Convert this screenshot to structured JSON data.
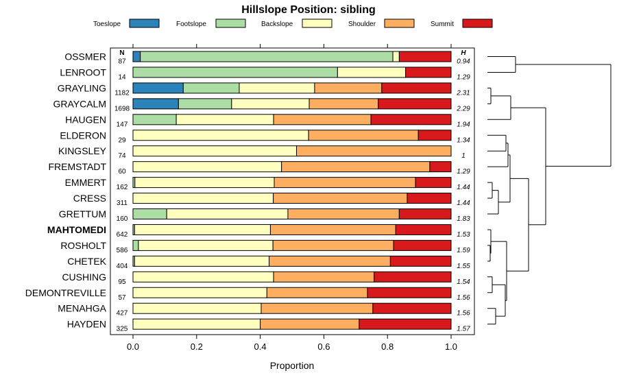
{
  "chart_data": {
    "type": "bar",
    "stacked": true,
    "horizontal": true,
    "title": "Hillslope Position: sibling",
    "xlabel": "Proportion",
    "ylabel": "",
    "xlim": [
      0,
      1
    ],
    "x_ticks": [
      "0.0",
      "0.2",
      "0.4",
      "0.6",
      "0.8",
      "1.0"
    ],
    "legend_position": "top",
    "n_header": "N",
    "h_header": "H",
    "highlight_category": "MAHTOMEDI",
    "series": [
      {
        "name": "Toeslope",
        "color": "#2b83ba"
      },
      {
        "name": "Footslope",
        "color": "#abdda4"
      },
      {
        "name": "Backslope",
        "color": "#ffffbf"
      },
      {
        "name": "Shoulder",
        "color": "#fdae61"
      },
      {
        "name": "Summit",
        "color": "#d7191c"
      }
    ],
    "rows": [
      {
        "name": "OSSMER",
        "n": "87",
        "h": "0.94",
        "values": [
          0.023,
          0.794,
          0.02,
          0.0,
          0.163
        ]
      },
      {
        "name": "LENROOT",
        "n": "14",
        "h": "1.29",
        "values": [
          0.0,
          0.643,
          0.214,
          0.0,
          0.143
        ]
      },
      {
        "name": "GRAYLING",
        "n": "1182",
        "h": "2.31",
        "values": [
          0.158,
          0.176,
          0.237,
          0.211,
          0.218
        ]
      },
      {
        "name": "GRAYCALM",
        "n": "1698",
        "h": "2.29",
        "values": [
          0.143,
          0.167,
          0.244,
          0.217,
          0.229
        ]
      },
      {
        "name": "HAUGEN",
        "n": "147",
        "h": "1.94",
        "values": [
          0.0,
          0.136,
          0.306,
          0.306,
          0.252
        ]
      },
      {
        "name": "ELDERON",
        "n": "29",
        "h": "1.34",
        "values": [
          0.0,
          0.0,
          0.552,
          0.345,
          0.103
        ]
      },
      {
        "name": "KINGSLEY",
        "n": "74",
        "h": "1",
        "values": [
          0.0,
          0.0,
          0.514,
          0.486,
          0.0
        ]
      },
      {
        "name": "FREMSTADT",
        "n": "60",
        "h": "1.29",
        "values": [
          0.0,
          0.0,
          0.467,
          0.466,
          0.067
        ]
      },
      {
        "name": "EMMERT",
        "n": "162",
        "h": "1.44",
        "values": [
          0.0,
          0.006,
          0.438,
          0.444,
          0.112
        ]
      },
      {
        "name": "CRESS",
        "n": "311",
        "h": "1.44",
        "values": [
          0.0,
          0.0,
          0.441,
          0.421,
          0.138
        ]
      },
      {
        "name": "GRETTUM",
        "n": "160",
        "h": "1.83",
        "values": [
          0.0,
          0.106,
          0.381,
          0.35,
          0.163
        ]
      },
      {
        "name": "MAHTOMEDI",
        "n": "642",
        "h": "1.53",
        "values": [
          0.0,
          0.005,
          0.427,
          0.394,
          0.174
        ]
      },
      {
        "name": "ROSHOLT",
        "n": "586",
        "h": "1.59",
        "values": [
          0.0,
          0.017,
          0.423,
          0.379,
          0.181
        ]
      },
      {
        "name": "CHETEK",
        "n": "404",
        "h": "1.55",
        "values": [
          0.0,
          0.005,
          0.423,
          0.381,
          0.191
        ]
      },
      {
        "name": "CUSHING",
        "n": "95",
        "h": "1.54",
        "values": [
          0.0,
          0.0,
          0.442,
          0.316,
          0.242
        ]
      },
      {
        "name": "DEMONTREVILLE",
        "n": "57",
        "h": "1.56",
        "values": [
          0.0,
          0.0,
          0.421,
          0.316,
          0.263
        ]
      },
      {
        "name": "MENAHGA",
        "n": "427",
        "h": "1.56",
        "values": [
          0.0,
          0.0,
          0.403,
          0.351,
          0.246
        ]
      },
      {
        "name": "HAYDEN",
        "n": "325",
        "h": "1.57",
        "values": [
          0.0,
          0.0,
          0.4,
          0.311,
          0.289
        ]
      }
    ]
  }
}
